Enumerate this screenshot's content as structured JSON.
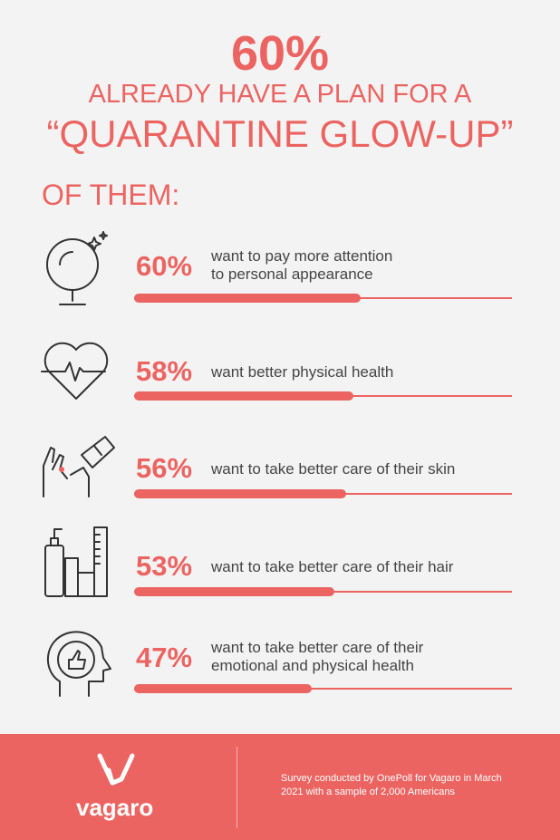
{
  "chart_data": {
    "type": "bar",
    "title": "60%",
    "subtitle": "ALREADY HAVE A PLAN FOR A",
    "headline": "“QUARANTINE GLOW-UP”",
    "section_label": "OF THEM:",
    "categories": [
      "want to pay more attention\nto personal appearance",
      "want better physical health",
      "want to take better care of their skin",
      "want to take better care of their hair",
      "want to take better care of their\nemotional and physical health"
    ],
    "values": [
      60,
      58,
      56,
      53,
      47
    ],
    "value_labels": [
      "60%",
      "58%",
      "56%",
      "53%",
      "47%"
    ],
    "xlim": [
      0,
      100
    ],
    "color": "#ec6461"
  },
  "footer": {
    "logo": "vagaro",
    "note": "Survey conducted by OnePoll for Vagaro in March 2021 with a sample of 2,000 Americans"
  }
}
